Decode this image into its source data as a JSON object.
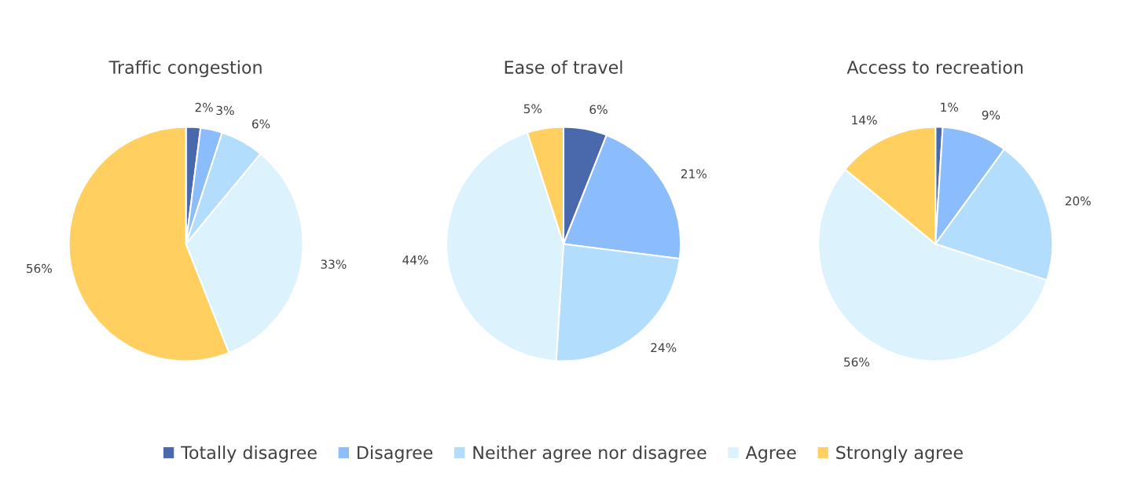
{
  "chart_data": [
    {
      "type": "pie",
      "title": "Traffic congestion",
      "categories": [
        "Totally disagree",
        "Disagree",
        "Neither agree nor disagree",
        "Agree",
        "Strongly agree"
      ],
      "values": [
        2,
        3,
        6,
        33,
        56
      ],
      "value_labels": [
        "2%",
        "3%",
        "6%",
        "33%",
        "56%"
      ],
      "colors": [
        "#4a69ad",
        "#8bbcfb",
        "#b3ddfc",
        "#dcf3fd",
        "#ffd060"
      ],
      "legend": "bottom"
    },
    {
      "type": "pie",
      "title": "Ease of travel",
      "categories": [
        null,
        null,
        null,
        null,
        null
      ],
      "values": [
        6,
        21,
        24,
        44,
        5
      ],
      "value_labels": [
        "6%",
        "21%",
        "24%",
        "44%",
        "5%"
      ],
      "colors": [
        "#4a69ad",
        "#8bbcfb",
        "#b3ddfc",
        "#dcf3fd",
        "#ffd060"
      ]
    },
    {
      "type": "pie",
      "title": "Access to recreation",
      "categories": [
        null,
        null,
        null,
        null,
        null
      ],
      "values": [
        1,
        9,
        20,
        56,
        14
      ],
      "value_labels": [
        "1%",
        "9%",
        "20%",
        "56%",
        "14%"
      ],
      "colors": [
        "#4a69ad",
        "#8bbcfb",
        "#b3ddfc",
        "#dcf3fd",
        "#ffd060"
      ]
    }
  ]
}
